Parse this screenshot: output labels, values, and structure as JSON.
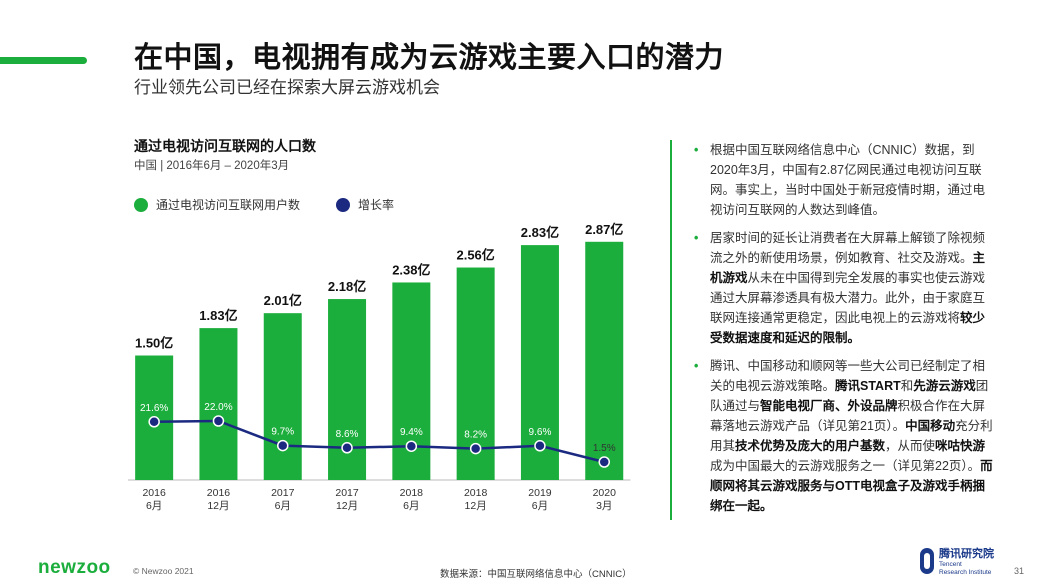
{
  "header": {
    "title": "在中国，电视拥有成为云游戏主要入口的潜力",
    "subtitle": "行业领先公司已经在探索大屏云游戏机会"
  },
  "colors": {
    "brand": "#1cae3c",
    "line": "#1b2a80",
    "tencent": "#1b3a8a"
  },
  "chart_data": {
    "type": "bar",
    "title": "通过电视访问互联网的人口数",
    "subtitle": "中国 | 2016年6月 – 2020年3月",
    "categories": [
      "2016\n6月",
      "2016\n12月",
      "2017\n6月",
      "2017\n12月",
      "2018\n6月",
      "2018\n12月",
      "2019\n6月",
      "2020\n3月"
    ],
    "series": [
      {
        "name": "通过电视访问互联网用户数",
        "type": "bar",
        "values": [
          1.5,
          1.83,
          2.01,
          2.18,
          2.38,
          2.56,
          2.83,
          2.87
        ],
        "labels": [
          "1.50亿",
          "1.83亿",
          "2.01亿",
          "2.18亿",
          "2.38亿",
          "2.56亿",
          "2.83亿",
          "2.87亿"
        ]
      },
      {
        "name": "增长率",
        "type": "line",
        "values": [
          21.6,
          22.0,
          9.7,
          8.6,
          9.4,
          8.2,
          9.6,
          1.5
        ],
        "labels": [
          "21.6%",
          "22.0%",
          "9.7%",
          "8.6%",
          "9.4%",
          "8.2%",
          "9.6%",
          "1.5%"
        ]
      }
    ],
    "legend_placement": "top-left",
    "grid": false
  },
  "bullets": [
    {
      "parts": [
        {
          "t": "根据中国互联网络信息中心（CNNIC）数据，到2020年3月，中国有2.87亿网民通过电视访问互联网。事实上，当时中国处于新冠疫情时期，通过电视访问互联网的人数达到峰值。",
          "b": false
        }
      ]
    },
    {
      "parts": [
        {
          "t": "居家时间的延长让消费者在大屏幕上解锁了除视频流之外的新使用场景，例如教育、社交及游戏。",
          "b": false
        },
        {
          "t": "主机游戏",
          "b": true
        },
        {
          "t": "从未在中国得到完全发展的事实也使云游戏通过大屏幕渗透具有极大潜力。此外，由于家庭互联网连接通常更稳定，因此电视上的云游戏将",
          "b": false
        },
        {
          "t": "较少受数据速度和延迟的限制。",
          "b": true
        }
      ]
    },
    {
      "parts": [
        {
          "t": "腾讯、中国移动和顺网等一些大公司已经制定了相关的电视云游戏策略。",
          "b": false
        },
        {
          "t": "腾讯START",
          "b": true
        },
        {
          "t": "和",
          "b": false
        },
        {
          "t": "先游云游戏",
          "b": true
        },
        {
          "t": "团队通过与",
          "b": false
        },
        {
          "t": "智能电视厂商、外设品牌",
          "b": true
        },
        {
          "t": "积极合作在大屏幕落地云游戏产品（详见第21页）。",
          "b": false
        },
        {
          "t": "中国移动",
          "b": true
        },
        {
          "t": "充分利用其",
          "b": false
        },
        {
          "t": "技术优势及庞大的用户基数",
          "b": true
        },
        {
          "t": "，从而使",
          "b": false
        },
        {
          "t": "咪咕快游",
          "b": true
        },
        {
          "t": "成为中国最大的云游戏服务之一（详见第22页）。",
          "b": false
        },
        {
          "t": "而顺网将其云游戏服务与OTT电视盒子及游戏手柄捆绑在一起。",
          "b": true
        }
      ]
    }
  ],
  "footer": {
    "logo": "newzoo",
    "copyright": "© Newzoo 2021",
    "source": "数据来源：中国互联网络信息中心（CNNIC）",
    "tencent_cn": "腾讯研究院",
    "tencent_en_1": "Tencent",
    "tencent_en_2": "Research Institute",
    "page": "31"
  }
}
